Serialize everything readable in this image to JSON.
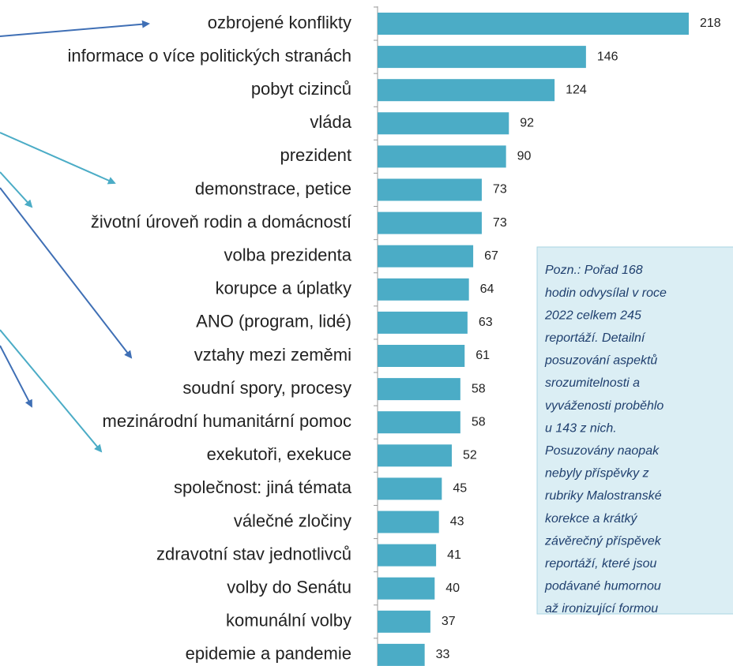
{
  "chart_data": {
    "type": "bar",
    "orientation": "horizontal",
    "color": "#4bacc6",
    "categories": [
      "ozbrojené konflikty",
      "informace o více politických stranách",
      "pobyt cizinců",
      "vláda",
      "prezident",
      "demonstrace, petice",
      "životní úroveň rodin a domácností",
      "volba prezidenta",
      "korupce a úplatky",
      "ANO (program, lidé)",
      "vztahy mezi zeměmi",
      "soudní spory, procesy",
      "mezinárodní humanitární pomoc",
      "exekutoři, exekuce",
      "společnost: jiná témata",
      "válečné zločiny",
      "zdravotní stav jednotlivců",
      "volby do Senátu",
      "komunální volby",
      "epidemie a pandemie"
    ],
    "values": [
      218,
      146,
      124,
      92,
      90,
      73,
      73,
      67,
      64,
      63,
      61,
      58,
      58,
      52,
      45,
      43,
      41,
      40,
      37,
      33
    ],
    "note": [
      "Pozn.: Pořad 168",
      "hodin odvysílal v roce",
      "2022 celkem 245",
      "reportáží. Detailní",
      "posuzování aspektů",
      "srozumitelnosti a",
      "vyváženosti proběhlo",
      "u 143 z nich.",
      "Posuzovány naopak",
      "nebyly příspěvky z",
      "rubriky Malostranské",
      "korekce a krátký",
      "závěrečný příspěvek",
      "reportáží, které jsou",
      "podávané humornou",
      "až ironizující formou"
    ]
  }
}
